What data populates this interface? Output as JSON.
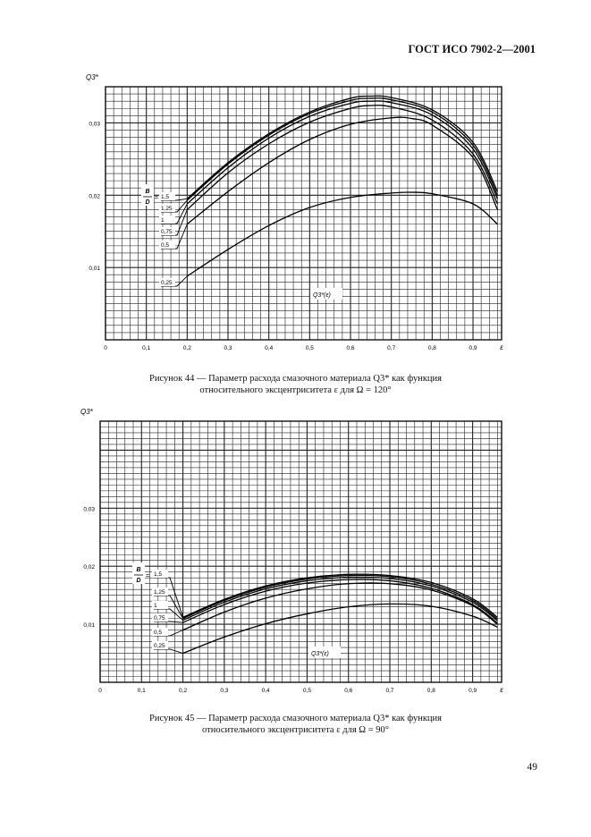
{
  "header": "ГОСТ ИСО 7902-2—2001",
  "page_number": "49",
  "chart_data": [
    {
      "type": "line",
      "ylabel": "Q3*",
      "xlabel": "ε",
      "function_label": "Q3*(ε)",
      "legend_param": "B/D",
      "xlim": [
        0,
        0.97
      ],
      "ylim": [
        0,
        0.035
      ],
      "x_ticks": [
        "0",
        "0,1",
        "0,2",
        "0,3",
        "0,4",
        "0,5",
        "0,6",
        "0,7",
        "0,8",
        "0,9"
      ],
      "x_tick_values": [
        0,
        0.1,
        0.2,
        0.3,
        0.4,
        0.5,
        0.6,
        0.7,
        0.8,
        0.9
      ],
      "y_ticks": [
        "0,01",
        "0,02",
        "0,03"
      ],
      "y_tick_values": [
        0.01,
        0.02,
        0.03
      ],
      "grid": true,
      "series": [
        {
          "name": "1,5",
          "x": [
            0.2,
            0.3,
            0.4,
            0.5,
            0.6,
            0.65,
            0.7,
            0.8,
            0.9,
            0.96
          ],
          "y": [
            0.0195,
            0.0245,
            0.0285,
            0.0315,
            0.0334,
            0.0337,
            0.0335,
            0.0318,
            0.0273,
            0.0205
          ]
        },
        {
          "name": "1,25",
          "x": [
            0.2,
            0.3,
            0.4,
            0.5,
            0.6,
            0.65,
            0.7,
            0.8,
            0.9,
            0.96
          ],
          "y": [
            0.0193,
            0.0243,
            0.0283,
            0.0313,
            0.0331,
            0.0334,
            0.0332,
            0.0315,
            0.0269,
            0.02
          ]
        },
        {
          "name": "1",
          "x": [
            0.2,
            0.3,
            0.4,
            0.5,
            0.6,
            0.65,
            0.7,
            0.8,
            0.9,
            0.96
          ],
          "y": [
            0.0188,
            0.0238,
            0.0279,
            0.0309,
            0.0327,
            0.033,
            0.0328,
            0.0311,
            0.0264,
            0.0195
          ]
        },
        {
          "name": "0,75",
          "x": [
            0.2,
            0.3,
            0.4,
            0.5,
            0.6,
            0.65,
            0.7,
            0.8,
            0.9,
            0.96
          ],
          "y": [
            0.018,
            0.0231,
            0.0271,
            0.0301,
            0.032,
            0.0324,
            0.0322,
            0.0304,
            0.0257,
            0.0188
          ]
        },
        {
          "name": "0,5",
          "x": [
            0.2,
            0.3,
            0.4,
            0.5,
            0.6,
            0.7,
            0.75,
            0.8,
            0.9,
            0.96
          ],
          "y": [
            0.016,
            0.0205,
            0.0245,
            0.0277,
            0.0298,
            0.0307,
            0.0306,
            0.0297,
            0.0252,
            0.018
          ]
        },
        {
          "name": "0,25",
          "x": [
            0.2,
            0.3,
            0.4,
            0.5,
            0.6,
            0.7,
            0.75,
            0.8,
            0.9,
            0.96
          ],
          "y": [
            0.0088,
            0.0125,
            0.0158,
            0.0183,
            0.0197,
            0.0203,
            0.0204,
            0.0202,
            0.0188,
            0.016
          ]
        }
      ],
      "series_labels": [
        "1,5",
        "1,25",
        "1",
        "0,75",
        "0,5",
        "0,25"
      ],
      "caption_line1": "Рисунок 44 — Параметр расхода смазочного материала Q3* как функция",
      "caption_line2": "относительного эксцентриситета ε для Ω = 120°"
    },
    {
      "type": "line",
      "ylabel": "Q3*",
      "xlabel": "ε",
      "function_label": "Q3*(ε)",
      "legend_param": "B/D",
      "xlim": [
        0,
        0.97
      ],
      "ylim": [
        0,
        0.045
      ],
      "x_ticks": [
        "0",
        "0,1",
        "0,2",
        "0,3",
        "0,4",
        "0,5",
        "0,6",
        "0,7",
        "0,8",
        "0,9"
      ],
      "x_tick_values": [
        0,
        0.1,
        0.2,
        0.3,
        0.4,
        0.5,
        0.6,
        0.7,
        0.8,
        0.9
      ],
      "y_ticks": [
        "0,01",
        "0,02",
        "0,03"
      ],
      "y_tick_values": [
        0.01,
        0.02,
        0.03
      ],
      "grid": true,
      "series": [
        {
          "name": "1,5",
          "x": [
            0.2,
            0.3,
            0.4,
            0.5,
            0.6,
            0.7,
            0.8,
            0.9,
            0.96
          ],
          "y": [
            0.0112,
            0.0143,
            0.0166,
            0.018,
            0.0186,
            0.0184,
            0.0172,
            0.0144,
            0.0112
          ]
        },
        {
          "name": "1,25",
          "x": [
            0.2,
            0.3,
            0.4,
            0.5,
            0.6,
            0.7,
            0.8,
            0.9,
            0.96
          ],
          "y": [
            0.011,
            0.0141,
            0.0164,
            0.0178,
            0.0184,
            0.0182,
            0.0169,
            0.0141,
            0.0109
          ]
        },
        {
          "name": "1",
          "x": [
            0.2,
            0.3,
            0.4,
            0.5,
            0.6,
            0.7,
            0.8,
            0.9,
            0.96
          ],
          "y": [
            0.0107,
            0.0138,
            0.0161,
            0.0175,
            0.0181,
            0.0179,
            0.0166,
            0.0138,
            0.0106
          ]
        },
        {
          "name": "0,75",
          "x": [
            0.2,
            0.3,
            0.4,
            0.5,
            0.6,
            0.7,
            0.8,
            0.9,
            0.96
          ],
          "y": [
            0.0103,
            0.0134,
            0.0157,
            0.0171,
            0.0177,
            0.0175,
            0.0162,
            0.0134,
            0.0102
          ]
        },
        {
          "name": "0,5",
          "x": [
            0.2,
            0.3,
            0.4,
            0.5,
            0.6,
            0.7,
            0.8,
            0.9,
            0.96
          ],
          "y": [
            0.009,
            0.0121,
            0.0145,
            0.0161,
            0.017,
            0.017,
            0.0159,
            0.0132,
            0.01
          ]
        },
        {
          "name": "0,25",
          "x": [
            0.2,
            0.3,
            0.4,
            0.5,
            0.6,
            0.7,
            0.8,
            0.9,
            0.96
          ],
          "y": [
            0.005,
            0.0078,
            0.0101,
            0.0118,
            0.013,
            0.0135,
            0.0131,
            0.0114,
            0.0095
          ]
        }
      ],
      "series_labels": [
        "1,5",
        "1,25",
        "1",
        "0,75",
        "0,5",
        "0,25"
      ],
      "caption_line1": "Рисунок 45 — Параметр расхода смазочного материала Q3* как функция",
      "caption_line2": "относительного эксцентриситета ε для Ω = 90°"
    }
  ]
}
